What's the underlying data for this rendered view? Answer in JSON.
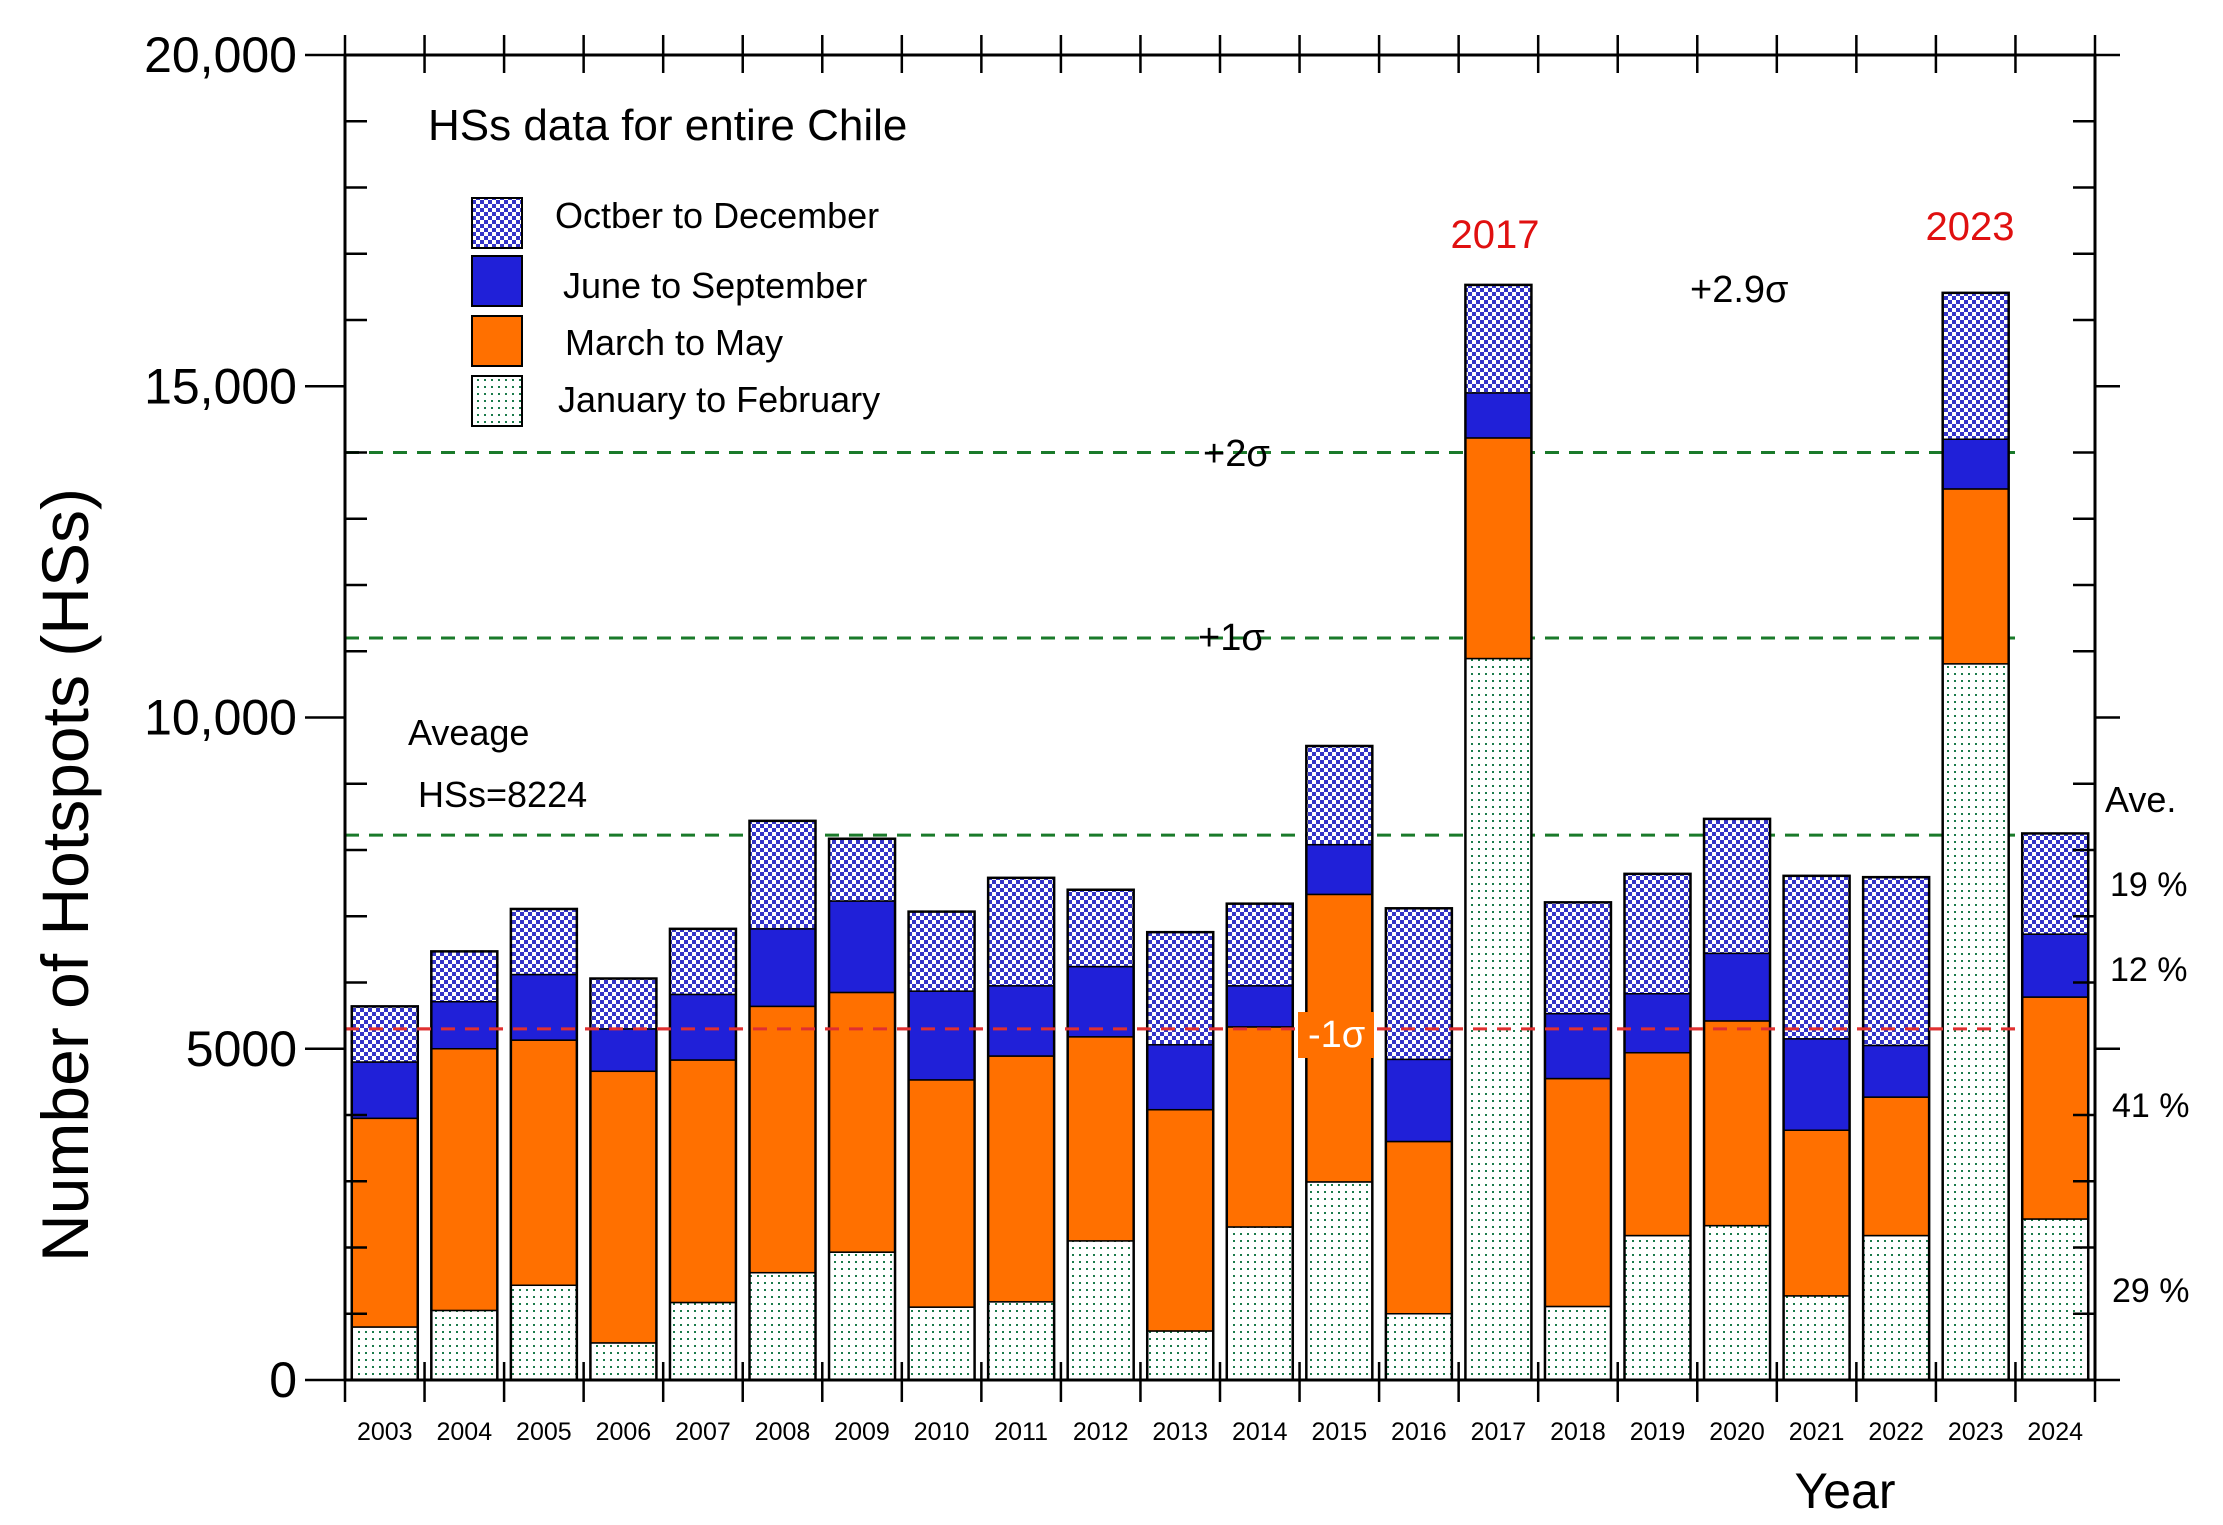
{
  "chart_data": {
    "type": "bar",
    "stacked": true,
    "title": "HSs data for entire Chile",
    "xlabel": "Year",
    "ylabel": "Number of Hotspots (HSs)",
    "ylim": [
      0,
      20000
    ],
    "y_ticks": [
      {
        "value": 0,
        "label": "0"
      },
      {
        "value": 5000,
        "label": "5000"
      },
      {
        "value": 10000,
        "label": "10,000"
      },
      {
        "value": 15000,
        "label": "15,000"
      },
      {
        "value": 20000,
        "label": "20,000"
      }
    ],
    "categories": [
      "2003",
      "2004",
      "2005",
      "2006",
      "2007",
      "2008",
      "2009",
      "2010",
      "2011",
      "2012",
      "2013",
      "2014",
      "2015",
      "2016",
      "2017",
      "2018",
      "2019",
      "2020",
      "2021",
      "2022",
      "2023",
      "2024"
    ],
    "series": [
      {
        "key": "janfeb",
        "name": "January to February",
        "values": [
          800,
          1050,
          1430,
          560,
          1170,
          1620,
          1930,
          1100,
          1180,
          2100,
          740,
          2310,
          2990,
          1000,
          10890,
          1110,
          2180,
          2330,
          1270,
          2180,
          10810,
          2430
        ]
      },
      {
        "key": "marmay",
        "name": "March to May",
        "values": [
          3150,
          3950,
          3700,
          4100,
          3660,
          4020,
          3920,
          3430,
          3710,
          3080,
          3340,
          3020,
          4340,
          2600,
          3330,
          3440,
          2760,
          3090,
          2500,
          2090,
          2640,
          3350
        ]
      },
      {
        "key": "junsep",
        "name": "June to September",
        "values": [
          850,
          710,
          990,
          640,
          990,
          1170,
          1380,
          1340,
          1060,
          1060,
          980,
          620,
          750,
          1240,
          680,
          980,
          890,
          1020,
          1380,
          780,
          750,
          950
        ]
      },
      {
        "key": "octdec",
        "name": "Octber to December",
        "values": [
          840,
          760,
          990,
          760,
          990,
          1630,
          940,
          1200,
          1630,
          1160,
          1700,
          1240,
          1490,
          2280,
          1630,
          1680,
          1810,
          2030,
          2460,
          2540,
          2210,
          1520
        ]
      }
    ],
    "legend": {
      "placement": "top-left",
      "items": [
        {
          "key": "octdec",
          "label": "Octber to December"
        },
        {
          "key": "junsep",
          "label": "June to September"
        },
        {
          "key": "marmay",
          "label": "March to May"
        },
        {
          "key": "janfeb",
          "label": "January to February"
        }
      ]
    },
    "reference_lines": [
      {
        "key": "avg",
        "value": 8224,
        "color": "#1a7a2a",
        "label": ""
      },
      {
        "key": "plus1",
        "value": 11200,
        "color": "#1a7a2a",
        "label": "+1σ"
      },
      {
        "key": "plus2",
        "value": 14000,
        "color": "#1a7a2a",
        "label": "+2σ"
      },
      {
        "key": "minus1",
        "value": 5300,
        "color": "#e03030",
        "label": "-1σ"
      }
    ],
    "annotations": {
      "average_line1": "Aveage",
      "average_line2": "HSs=8224",
      "year_2017": "2017",
      "year_2023": "2023",
      "sigma_peak": "+2.9σ"
    },
    "average_shares": {
      "header": "Ave.",
      "octdec": "19 %",
      "junsep": "12 %",
      "marmay": "41  %",
      "janfeb": "29  %"
    },
    "colors": {
      "janfeb_bg": "#ffffff",
      "janfeb_dot": "#1a7a4a",
      "marmay": "#ff7000",
      "junsep": "#2020d8",
      "octdec_a": "#3434c8",
      "octdec_b": "#ffffff",
      "red": "#e01010"
    }
  }
}
